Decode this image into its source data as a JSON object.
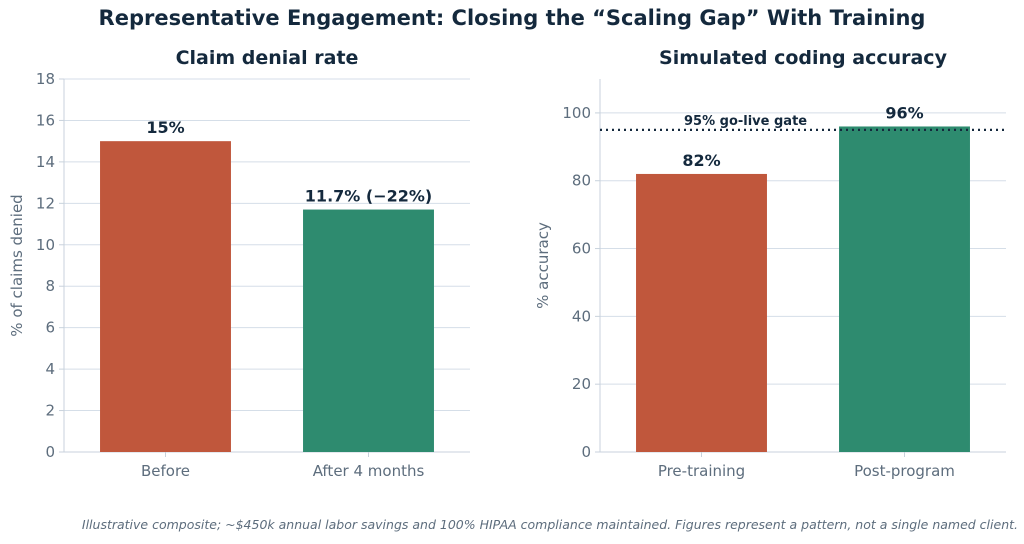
{
  "figure": {
    "title": "Representative Engagement: Closing the “Scaling Gap” With Training",
    "footnote": "Illustrative composite; ~$450k annual labor savings and 100% HIPAA compliance maintained. Figures represent a pattern, not a single named client."
  },
  "colors": {
    "before": "#c0573c",
    "after": "#2e8b6f",
    "text_dark": "#14293d",
    "text_muted": "#5d6d7d",
    "grid": "#d5dee8",
    "axis": "#c8d2dc",
    "reference_line": "#14293d"
  },
  "chart_data": [
    {
      "type": "bar",
      "title": "Claim denial rate",
      "xlabel": "",
      "ylabel": "% of claims denied",
      "categories": [
        "Before",
        "After 4 months"
      ],
      "values": [
        15,
        11.7
      ],
      "value_labels": [
        "15%",
        "11.7%  (−22%)"
      ],
      "bar_colors": [
        "#c0573c",
        "#2e8b6f"
      ],
      "ylim": [
        0,
        18
      ],
      "yticks": [
        0,
        2,
        4,
        6,
        8,
        10,
        12,
        14,
        16,
        18
      ],
      "grid": true
    },
    {
      "type": "bar",
      "title": "Simulated coding accuracy",
      "xlabel": "",
      "ylabel": "% accuracy",
      "categories": [
        "Pre-training",
        "Post-program"
      ],
      "values": [
        82,
        96
      ],
      "value_labels": [
        "82%",
        "96%"
      ],
      "bar_colors": [
        "#c0573c",
        "#2e8b6f"
      ],
      "ylim": [
        0,
        110
      ],
      "yticks": [
        0,
        20,
        40,
        60,
        80,
        100
      ],
      "grid": true,
      "reference_line": {
        "value": 95,
        "label": "95% go-live gate",
        "style": "dotted"
      }
    }
  ]
}
